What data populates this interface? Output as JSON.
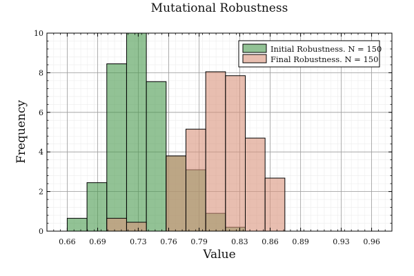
{
  "chart_data": {
    "type": "bar",
    "title": "Mutational Robustness",
    "xlabel": "Value",
    "ylabel": "Frequency",
    "xlim": [
      0.64,
      0.98
    ],
    "ylim": [
      0,
      10
    ],
    "bin_edges": [
      0.66,
      0.6795,
      0.699,
      0.7185,
      0.738,
      0.7575,
      0.777,
      0.7965,
      0.816,
      0.8355,
      0.855,
      0.8745,
      0.894,
      0.9135,
      0.933,
      0.9525
    ],
    "x_ticks": [
      0.66,
      0.69,
      0.73,
      0.76,
      0.79,
      0.83,
      0.86,
      0.89,
      0.93,
      0.96
    ],
    "x_tick_labels": [
      "0.66",
      "0.69",
      "0.73",
      "0.76",
      "0.79",
      "0.83",
      "0.86",
      "0.89",
      "0.93",
      "0.96"
    ],
    "y_ticks": [
      0,
      2,
      4,
      6,
      8,
      10
    ],
    "y_tick_labels": [
      "0",
      "2",
      "4",
      "6",
      "8",
      "10"
    ],
    "grid": true,
    "legend_position": "top-right",
    "series": [
      {
        "name": "Initial Robustness. N = 150",
        "color": "#4a9a4f",
        "values": [
          0.65,
          2.45,
          8.45,
          10.0,
          7.55,
          3.8,
          3.1,
          0.9,
          0.2,
          0,
          0,
          0,
          0,
          0,
          0
        ]
      },
      {
        "name": "Final Robustness. N = 150",
        "color": "#d9937c",
        "values": [
          0,
          0,
          0.65,
          0.45,
          0,
          3.8,
          5.15,
          8.05,
          7.85,
          4.7,
          2.68,
          0,
          0,
          0,
          0
        ]
      }
    ]
  }
}
